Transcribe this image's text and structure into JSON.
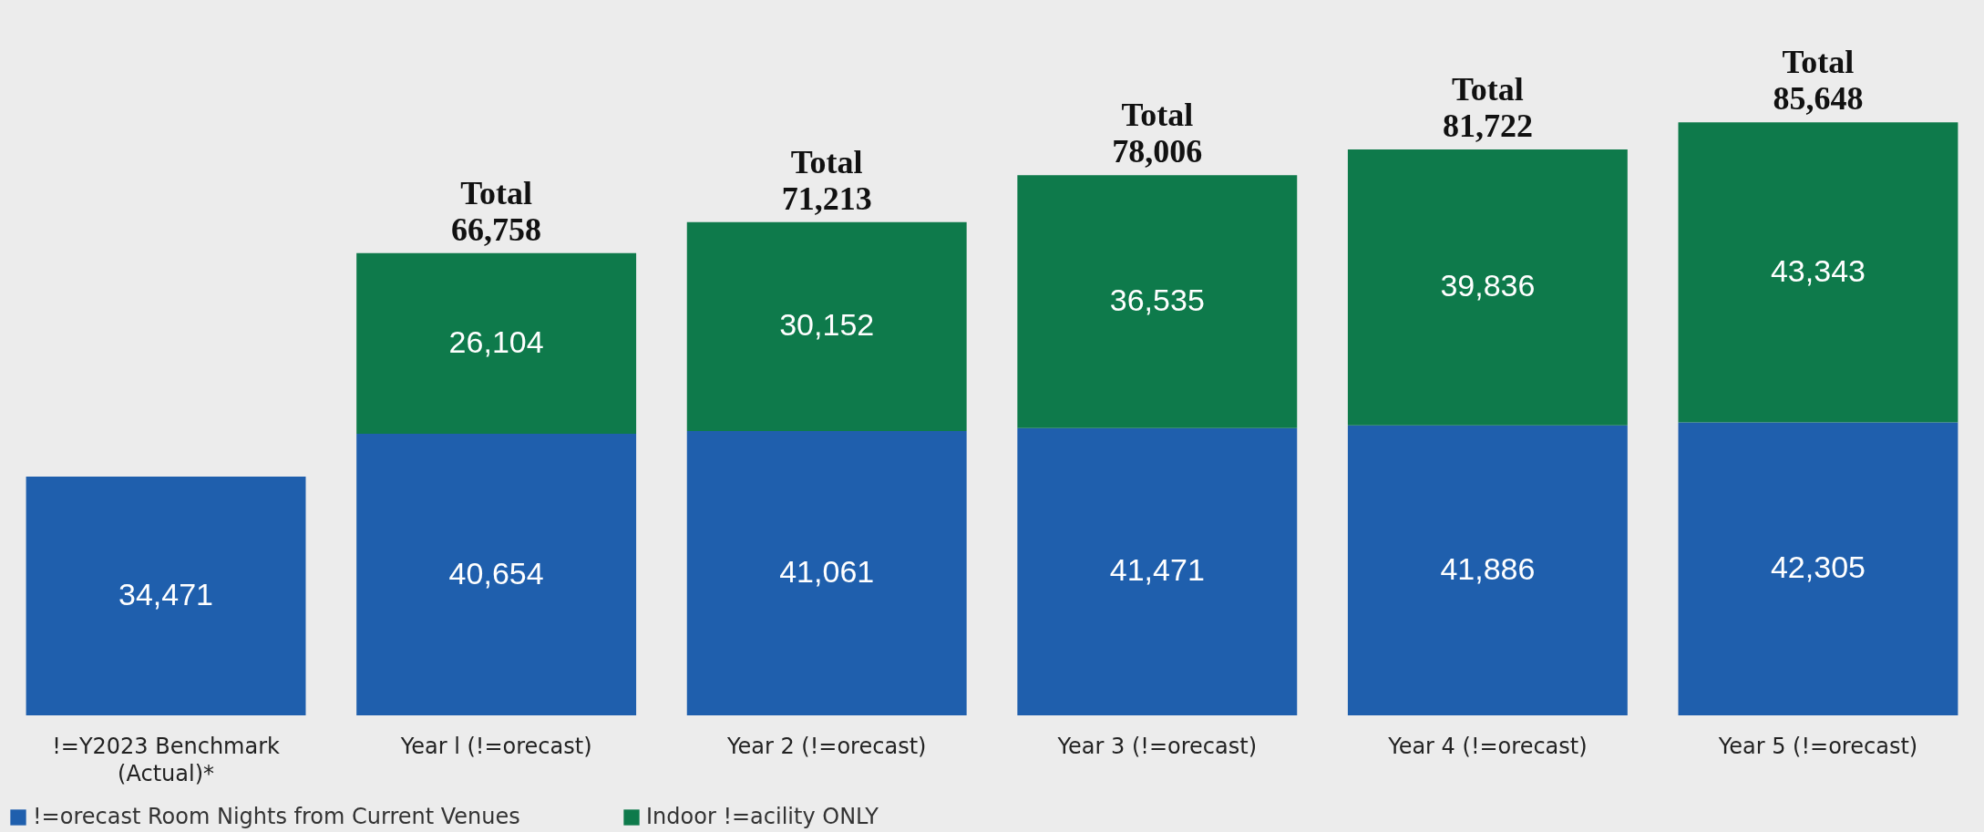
{
  "chart_data": {
    "type": "bar",
    "stacked": true,
    "categories": [
      "!=Y2023 Benchmark (Actual)*",
      "Year l (!=orecast)",
      "Year 2 (!=orecast)",
      "Year 3 (!=orecast)",
      "Year 4 (!=orecast)",
      "Year 5 (!=orecast)"
    ],
    "series": [
      {
        "name": "!=orecast Room Nights from Current Venues",
        "color": "#1f5fad",
        "values": [
          34471,
          40654,
          41061,
          41471,
          41886,
          42305
        ],
        "value_labels": [
          "34,471",
          "40,654",
          "41,061",
          "41,471",
          "41,886",
          "42,305"
        ]
      },
      {
        "name": "Indoor !=acility ONLY",
        "color": "#0e7a4b",
        "values": [
          null,
          26104,
          30152,
          36535,
          39836,
          43343
        ],
        "value_labels": [
          null,
          "26,104",
          "30,152",
          "36,535",
          "39,836",
          "43,343"
        ]
      }
    ],
    "totals": [
      null,
      "Total 66,758",
      "Total 71,213",
      "Total 78,006",
      "Total 81,722",
      "Total 85,648"
    ],
    "legend": "bottom",
    "grid": false
  }
}
